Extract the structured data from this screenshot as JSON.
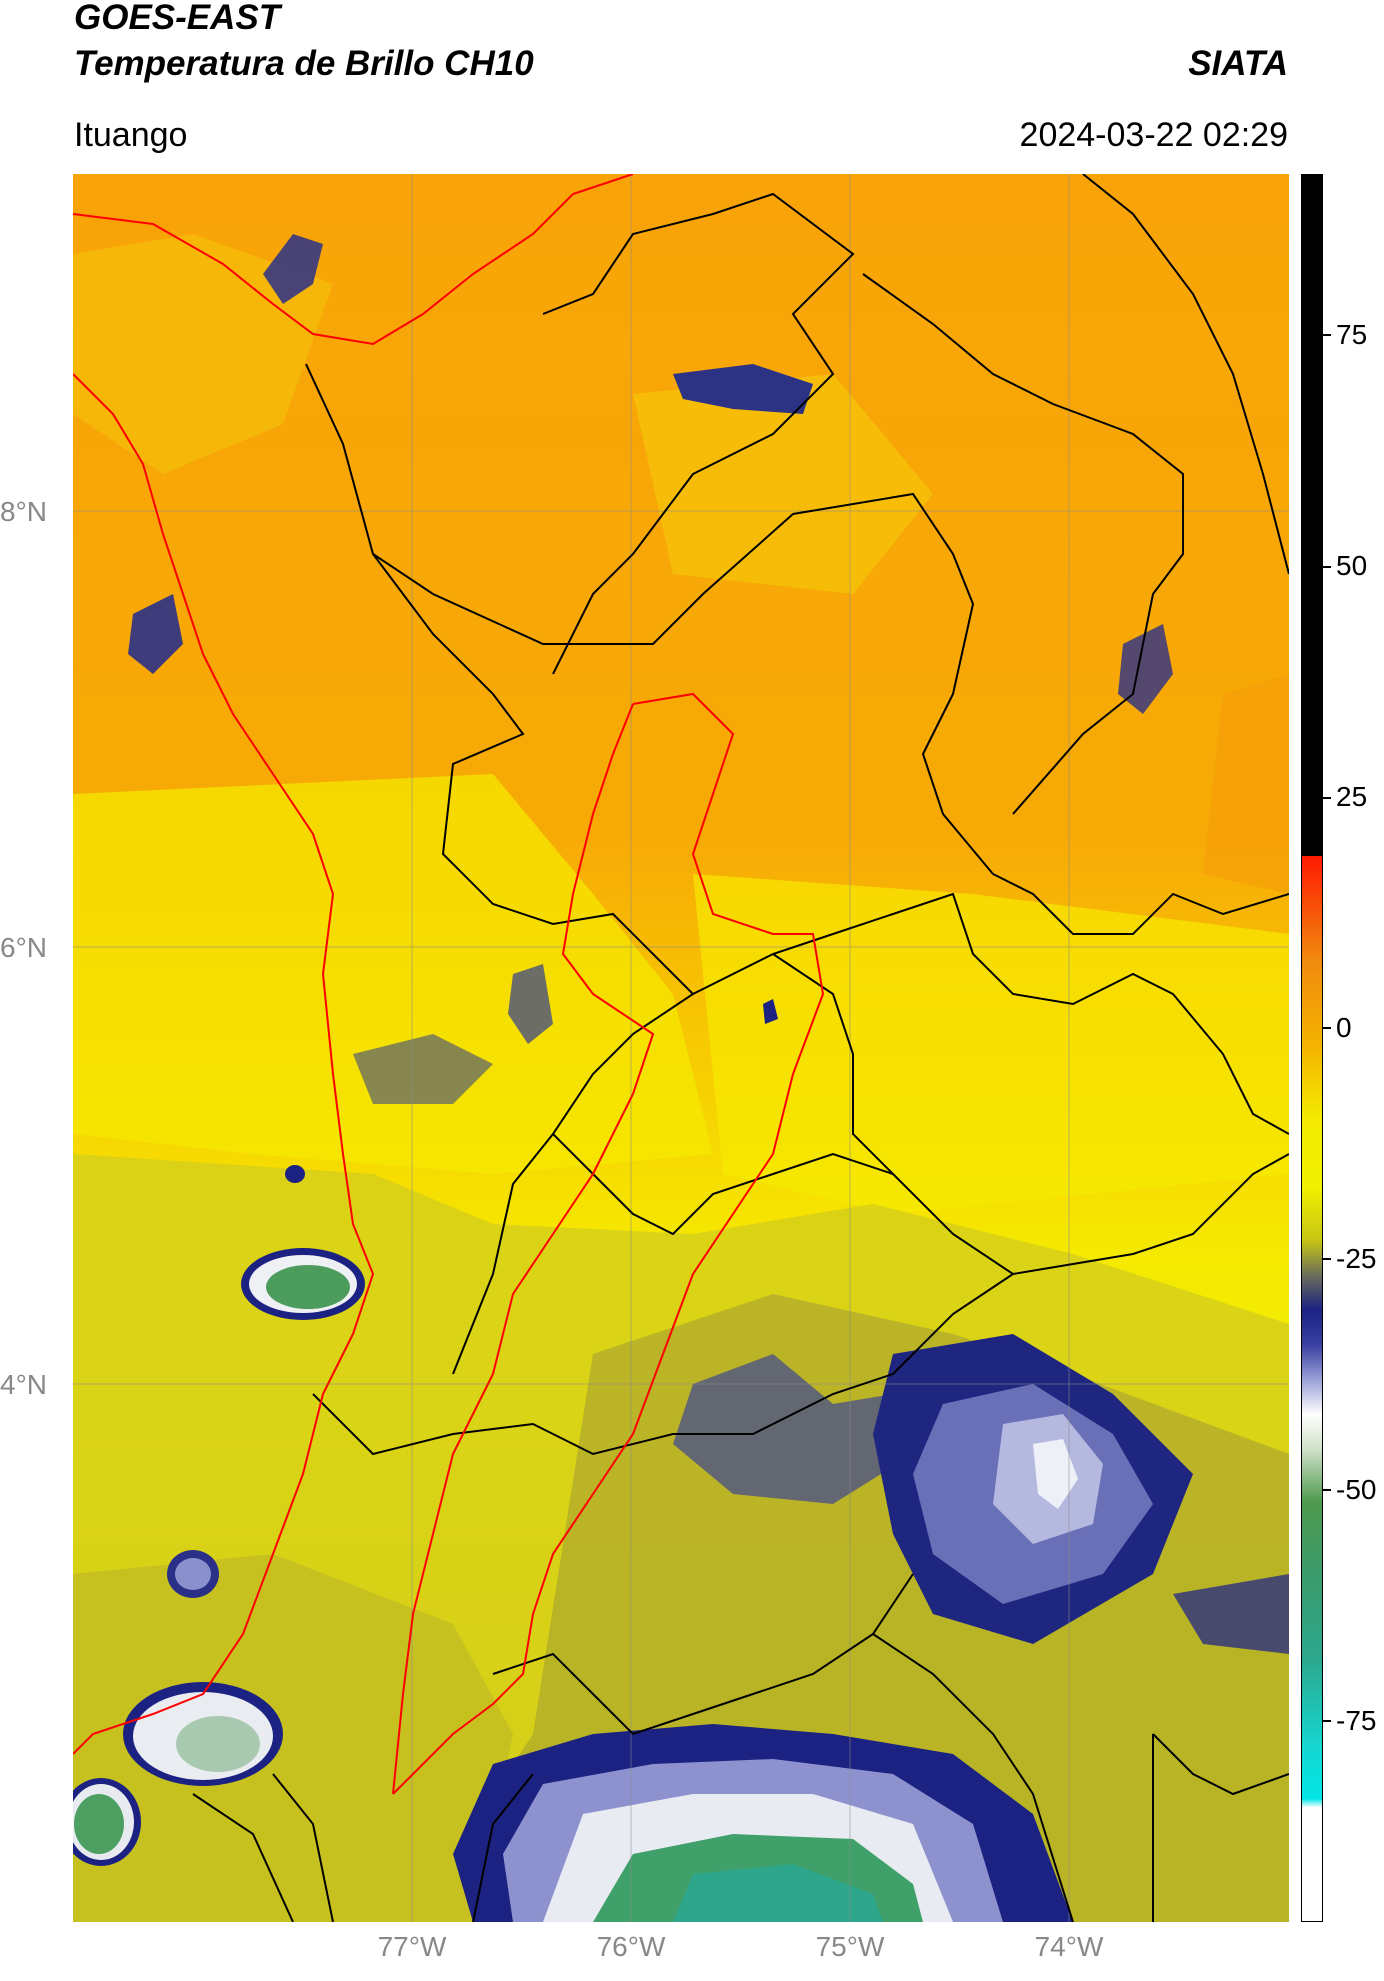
{
  "header": {
    "title": "GOES-EAST",
    "subtitle": "Temperatura de Brillo CH10",
    "organization": "SIATA",
    "location": "Ituango",
    "datetime": "2024-03-22 02:29"
  },
  "map": {
    "lat_labels": [
      "8°N",
      "6°N",
      "4°N"
    ],
    "lon_labels": [
      "77°W",
      "76°W",
      "75°W",
      "74°W"
    ],
    "colors": {
      "orange": "#f7a20a",
      "yellow": "#f6f500",
      "olive": "#b7b425",
      "navy": "#1a1f7e",
      "periwinkle": "#8087c8",
      "green": "#3d9a5a",
      "teal": "#2fa88a",
      "border_black": "#000000",
      "border_red": "#ff0000"
    }
  },
  "colorbar": {
    "tick_labels": [
      "75",
      "50",
      "25",
      "0",
      "-25",
      "-50",
      "-75"
    ]
  }
}
